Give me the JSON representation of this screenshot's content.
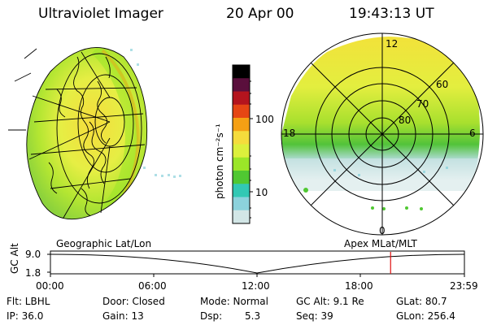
{
  "header": {
    "title": "Ultraviolet Imager",
    "date": "20 Apr 00",
    "time": "19:43:13 UT"
  },
  "colorbar": {
    "unit_label": "photon cm⁻²s⁻¹",
    "ticks": [
      "100",
      "10"
    ],
    "colors": [
      "#000000",
      "#5a0f3c",
      "#b4141e",
      "#e64614",
      "#f5a014",
      "#f5dc3c",
      "#dcf03c",
      "#9be628",
      "#50c832",
      "#32c8b4",
      "#8cd2dc",
      "#d2e6e6"
    ]
  },
  "left_panel": {
    "label": "Geographic Lat/Lon"
  },
  "right_panel": {
    "label": "Apex MLat/MLT",
    "mlt_labels": [
      "12",
      "18",
      "6",
      "0"
    ],
    "lat_labels": [
      "60",
      "70",
      "80"
    ]
  },
  "timeline": {
    "y_axis_label": "GC Alt",
    "y_ticks": [
      "9.0",
      "1.8"
    ],
    "x_ticks": [
      "00:00",
      "06:00",
      "12:00",
      "18:00",
      "23:59"
    ],
    "marker_fraction": 0.8217
  },
  "info": {
    "flt": "Flt: LBHL",
    "ip": "IP: 36.0",
    "door": "Door: Closed",
    "gain": "Gain: 13",
    "mode": "Mode: Normal",
    "dsp": "Dsp:",
    "dsp_value": "5.3",
    "gc_alt": "GC Alt: 9.1 Re",
    "seq": "Seq: 39",
    "glat": "GLat: 80.7",
    "glon": "GLon: 256.4"
  }
}
